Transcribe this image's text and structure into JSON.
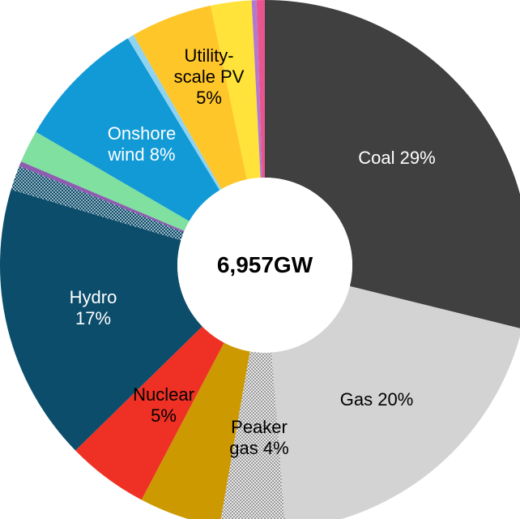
{
  "chart_data": {
    "type": "donut",
    "center_label": "6,957GW",
    "categories": [
      "Coal",
      "Gas",
      "Peaker gas",
      null,
      "Nuclear",
      "Hydro",
      null,
      null,
      null,
      "Onshore wind",
      null,
      "Utility-scale PV",
      null,
      null,
      null
    ],
    "values": [
      29,
      20,
      4,
      5,
      5,
      17,
      1.5,
      0.3,
      2,
      8,
      0.4,
      5,
      2.5,
      0.3,
      0.5
    ],
    "value_labels": [
      "29%",
      "20%",
      "4%",
      null,
      "5%",
      "17%",
      null,
      null,
      null,
      "8%",
      null,
      "5%",
      null,
      null,
      null
    ],
    "colors": [
      "#404040",
      "#d3d3d3",
      "#d9d9d9",
      "#cc9900",
      "#ee3124",
      "#0b4d6b",
      "#0b4d6b",
      "#8e5db0",
      "#7fe0a0",
      "#129ad6",
      "#8fd3f0",
      "#ffc629",
      "#ffe33a",
      "#b07ad0",
      "#e8558e"
    ],
    "dotted": [
      false,
      false,
      true,
      false,
      false,
      false,
      true,
      false,
      false,
      false,
      false,
      false,
      false,
      false,
      false
    ]
  }
}
